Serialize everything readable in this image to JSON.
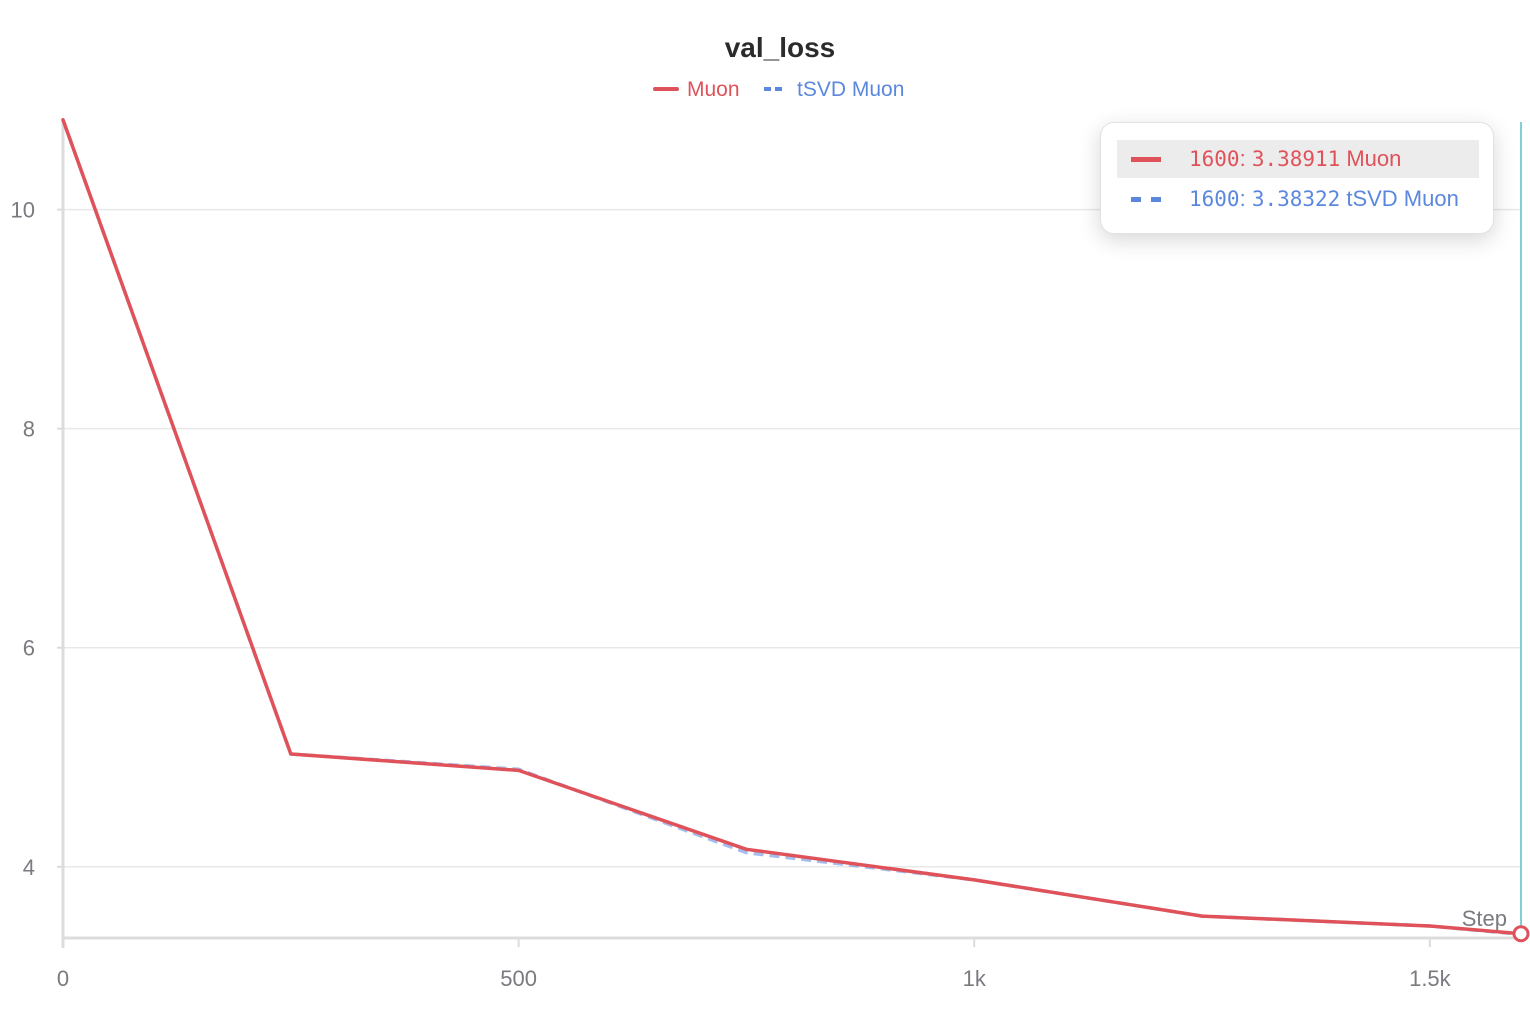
{
  "colors": {
    "muon": "#e0525a",
    "tsvd": "#5b87de",
    "cursor": "#5bbdc9",
    "grid": "#e8e8e8",
    "axis": "#dcdcdc"
  },
  "chart_data": {
    "type": "line",
    "title": "val_loss",
    "xlabel": "Step",
    "ylabel": "",
    "xlim": [
      0,
      1600
    ],
    "ylim": [
      3.35,
      10.8
    ],
    "x_ticks": [
      {
        "value": 0,
        "label": "0"
      },
      {
        "value": 500,
        "label": "500"
      },
      {
        "value": 1000,
        "label": "1k"
      },
      {
        "value": 1500,
        "label": "1.5k"
      }
    ],
    "y_ticks": [
      {
        "value": 4,
        "label": "4"
      },
      {
        "value": 6,
        "label": "6"
      },
      {
        "value": 8,
        "label": "8"
      },
      {
        "value": 10,
        "label": "10"
      }
    ],
    "grid": true,
    "legend_position": "top-center",
    "series": [
      {
        "name": "Muon",
        "style": "solid",
        "color": "#e0525a",
        "x": [
          0,
          250,
          500,
          750,
          1000,
          1250,
          1500,
          1600
        ],
        "y": [
          10.82,
          5.03,
          4.88,
          4.16,
          3.88,
          3.55,
          3.46,
          3.38911
        ]
      },
      {
        "name": "tSVD Muon",
        "style": "dashed",
        "color": "#5b87de",
        "x": [
          0,
          250,
          500,
          750,
          1000,
          1250,
          1500,
          1600
        ],
        "y": [
          10.82,
          5.03,
          4.89,
          4.13,
          3.88,
          3.55,
          3.46,
          3.38322
        ]
      }
    ]
  },
  "tooltip": {
    "rows": [
      {
        "step": "1600",
        "sep": ":",
        "value": "3.38911",
        "name": "Muon"
      },
      {
        "step": "1600",
        "sep": ":",
        "value": "3.38322",
        "name": "tSVD Muon"
      }
    ]
  }
}
